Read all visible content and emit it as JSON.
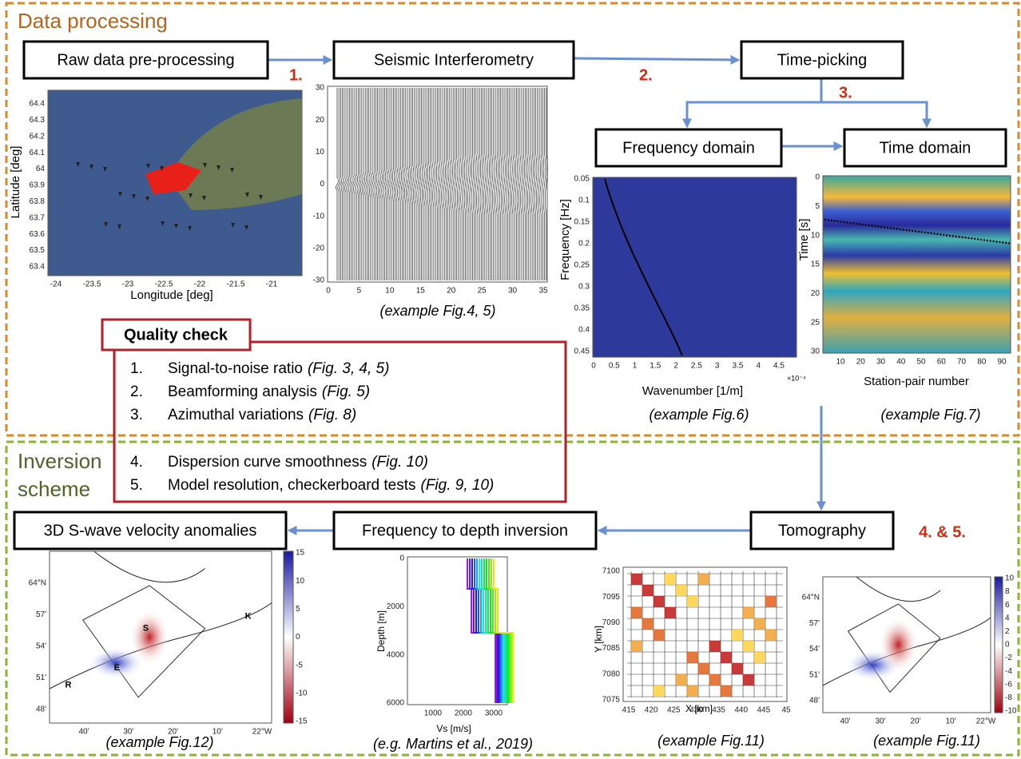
{
  "sections": {
    "processing": "Data processing",
    "inversion": [
      "Inversion",
      "scheme"
    ]
  },
  "boxes": [
    "Raw data pre-processing",
    "Seismic Interferometry",
    "Time-picking",
    "Frequency domain",
    "Time domain",
    "Tomography",
    "Frequency to depth inversion",
    "3D S-wave velocity anomalies"
  ],
  "steps": [
    "1.",
    "2.",
    "3.",
    "4. & 5."
  ],
  "quality_check": {
    "title": "Quality check",
    "items": [
      {
        "number": "1.",
        "text": "Signal-to-noise ratio",
        "ref": "(Fig. 3, 4, 5)"
      },
      {
        "number": "2.",
        "text": "Beamforming analysis",
        "ref": "(Fig. 5)"
      },
      {
        "number": "3.",
        "text": "Azimuthal variations",
        "ref": "(Fig. 8)"
      },
      {
        "number": "4.",
        "text": "Dispersion curve smoothness",
        "ref": "(Fig. 10)"
      },
      {
        "number": "5.",
        "text": "Model resolution, checkerboard tests",
        "ref": "(Fig. 9, 10)"
      }
    ]
  },
  "panels": [
    {
      "xlabel": "Longitude [deg]",
      "ylabel": "Latitude [deg]",
      "xticks": [
        "-24",
        "-23.5",
        "-23",
        "-22.5",
        "-22",
        "-21.5",
        "-21"
      ],
      "yticks": [
        "64.4",
        "64.3",
        "64.2",
        "64.1",
        "64",
        "63.9",
        "63.8",
        "63.7",
        "63.6",
        "63.5",
        "63.4"
      ]
    },
    {
      "caption": "(example Fig.4, 5)",
      "xticks": [
        "0",
        "5",
        "10",
        "15",
        "20",
        "25",
        "30",
        "35"
      ],
      "yticks": [
        "30",
        "20",
        "10",
        "0",
        "-10",
        "-20",
        "-30"
      ]
    },
    {
      "caption": "(example Fig.6)",
      "xlabel": "Wavenumber [1/m]",
      "ylabel": "Frequency [Hz]",
      "exponent": "×10⁻⁴",
      "xticks": [
        "0",
        "0.5",
        "1",
        "1.5",
        "2",
        "2.5",
        "3",
        "3.5",
        "4",
        "4.5"
      ],
      "yticks": [
        "0.05",
        "0.1",
        "0.15",
        "0.2",
        "0.25",
        "0.3",
        "0.35",
        "0.4",
        "0.45"
      ]
    },
    {
      "caption": "(example Fig.7)",
      "xlabel": "Station-pair number",
      "ylabel": "Time [s]",
      "xticks": [
        "10",
        "20",
        "30",
        "40",
        "50",
        "60",
        "70",
        "80",
        "90"
      ],
      "yticks": [
        "0",
        "5",
        "10",
        "15",
        "20",
        "25",
        "30"
      ]
    },
    {
      "caption": "(example Fig.12)",
      "xticks": [
        "40'",
        "30'",
        "20'",
        "10'",
        "22°W"
      ],
      "yticks": [
        "64°N",
        "57'",
        "54'",
        "51'",
        "48'"
      ],
      "colorbar": [
        "15",
        "10",
        "5",
        "0",
        "-5",
        "-10",
        "-15"
      ],
      "letters": [
        "K",
        "S",
        "E",
        "R"
      ]
    },
    {
      "caption": "(e.g. Martins et al., 2019)",
      "xlabel": "Vs [m/s]",
      "ylabel": "Depth [m]",
      "xticks": [
        "1000",
        "2000",
        "3000"
      ],
      "yticks": [
        "0",
        "2000",
        "4000",
        "6000"
      ]
    },
    {
      "caption": "(example Fig.11)",
      "xlabel": "X [km]",
      "ylabel": "Y [km]",
      "xticks": [
        "415",
        "420",
        "425",
        "430",
        "435",
        "440",
        "445",
        "45"
      ],
      "yticks": [
        "7100",
        "7095",
        "7090",
        "7085",
        "7080",
        "7075"
      ]
    },
    {
      "caption": "(example Fig.11)",
      "xticks": [
        "40'",
        "30'",
        "20'",
        "10'",
        "22°W"
      ],
      "yticks": [
        "64°N",
        "57'",
        "54'",
        "51'",
        "48'"
      ],
      "colorbar": [
        "10",
        "8",
        "6",
        "4",
        "2",
        "0",
        "-2",
        "-4",
        "-6",
        "-8",
        "-10"
      ]
    }
  ]
}
